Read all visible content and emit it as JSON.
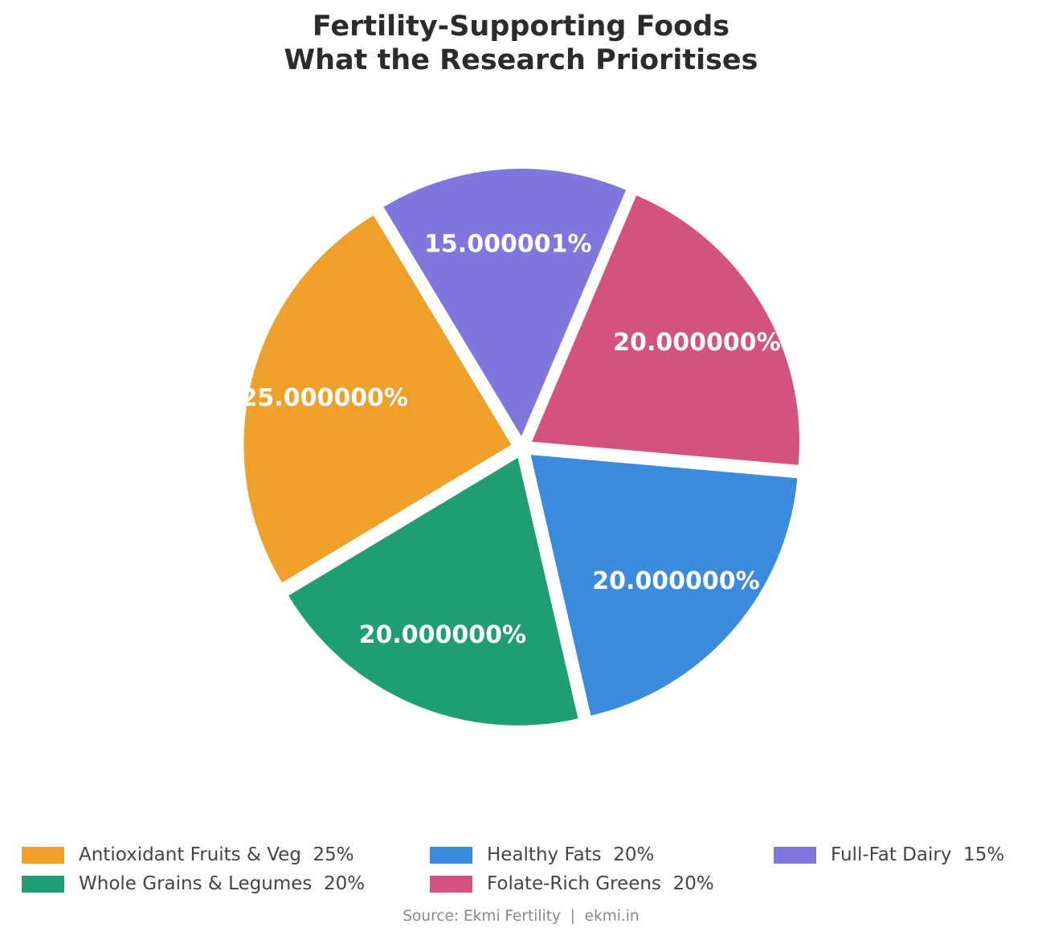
{
  "title": {
    "line1": "Fertility-Supporting Foods",
    "line2": "What the Research Prioritises"
  },
  "chart_data": {
    "type": "pie",
    "title": "Fertility-Supporting Foods\nWhat the Research Prioritises",
    "categories": [
      "Antioxidant Fruits & Veg",
      "Whole Grains & Legumes",
      "Healthy Fats",
      "Folate-Rich Greens",
      "Full-Fat Dairy"
    ],
    "values": [
      25,
      20,
      20,
      20,
      15
    ],
    "colors": [
      "#EFA02A",
      "#1F9E76",
      "#3A8ADE",
      "#D4537E",
      "#7F77DD"
    ],
    "wedge_labels": [
      "25.000000%",
      "20.000000%",
      "20.000000%",
      "20.000000%",
      "15.000001%"
    ],
    "start_angle_deg": 121,
    "direction": "counterclockwise",
    "explode": "all wedges slightly separated",
    "legend_position": "bottom"
  },
  "legend": {
    "items": [
      {
        "label": "Antioxidant Fruits & Veg  25%",
        "color": "#EFA02A"
      },
      {
        "label": "Whole Grains & Legumes  20%",
        "color": "#1F9E76"
      },
      {
        "label": "Healthy Fats  20%",
        "color": "#3A8ADE"
      },
      {
        "label": "Folate-Rich Greens  20%",
        "color": "#D4537E"
      },
      {
        "label": "Full-Fat Dairy  15%",
        "color": "#7F77DD"
      }
    ]
  },
  "source": "Source: Ekmi Fertility  |  ekmi.in"
}
